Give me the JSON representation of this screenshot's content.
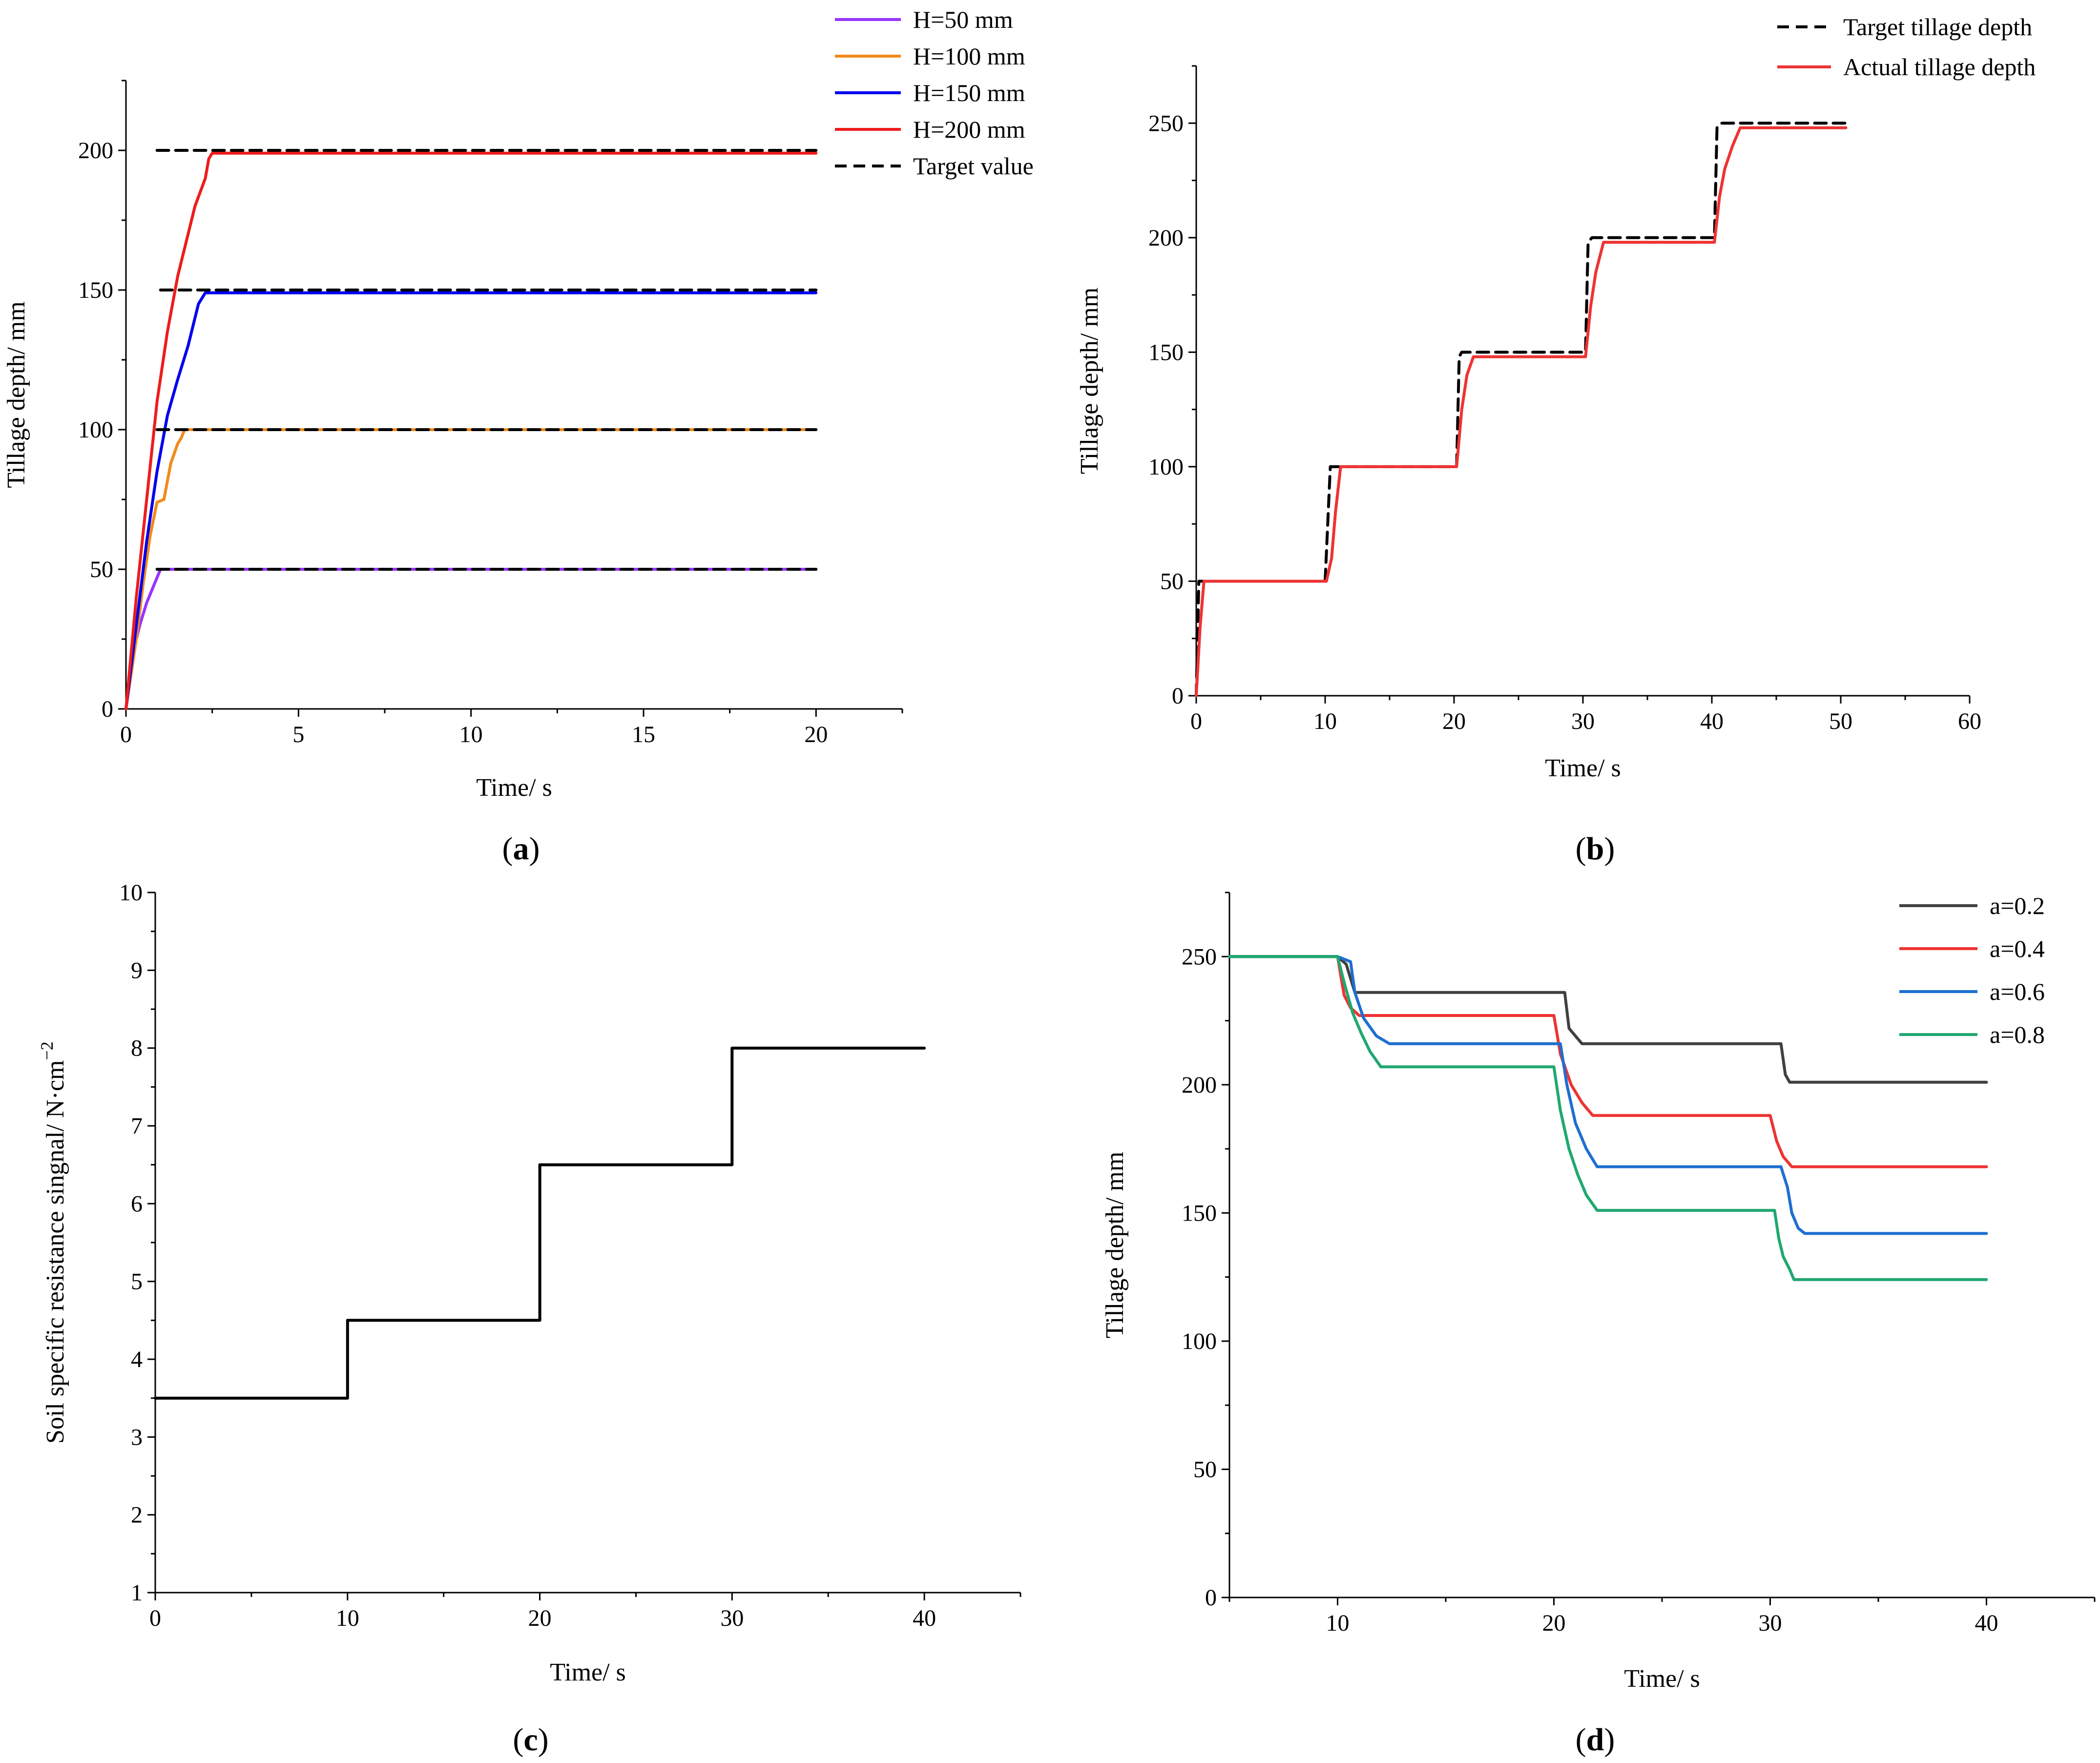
{
  "chart_data": [
    {
      "id": "a",
      "type": "line",
      "panel_label": "a",
      "xlabel": "Time/ s",
      "ylabel": "Tillage depth/ mm",
      "xlim": [
        0,
        22.5
      ],
      "ylim": [
        0,
        225
      ],
      "xticks": [
        0,
        5,
        10,
        15,
        20
      ],
      "yticks": [
        0,
        50,
        100,
        150,
        200
      ],
      "legend_position": "top-right",
      "series": [
        {
          "name": "H=50 mm",
          "color": "#9933FF",
          "dash": "",
          "x": [
            0,
            0.2,
            0.4,
            0.6,
            0.8,
            1.0,
            20
          ],
          "y": [
            0,
            20,
            30,
            38,
            44,
            50,
            50
          ]
        },
        {
          "name": "H=100 mm",
          "color": "#F28A1A",
          "dash": "",
          "x": [
            0,
            0.3,
            0.5,
            0.7,
            0.9,
            1.1,
            1.3,
            1.5,
            1.6,
            1.7,
            20
          ],
          "y": [
            0,
            25,
            45,
            62,
            74,
            75,
            88,
            95,
            97,
            100,
            100
          ]
        },
        {
          "name": "H=150 mm",
          "color": "#0000EE",
          "dash": "",
          "x": [
            0,
            0.3,
            0.6,
            0.9,
            1.2,
            1.5,
            1.8,
            2.1,
            2.3,
            20
          ],
          "y": [
            0,
            30,
            60,
            85,
            105,
            118,
            130,
            145,
            149,
            149
          ]
        },
        {
          "name": "H=200 mm",
          "color": "#EE1C1C",
          "dash": "",
          "x": [
            0,
            0.3,
            0.6,
            0.9,
            1.2,
            1.5,
            1.8,
            2.0,
            2.3,
            2.4,
            2.5,
            20
          ],
          "y": [
            0,
            40,
            75,
            110,
            135,
            155,
            170,
            180,
            190,
            197,
            199,
            199
          ]
        },
        {
          "name": "Target value",
          "color": "#000000",
          "dash": "24,14",
          "segments": [
            {
              "x": [
                0.9,
                20
              ],
              "y": [
                50,
                50
              ]
            },
            {
              "x": [
                0.9,
                20
              ],
              "y": [
                100,
                100
              ]
            },
            {
              "x": [
                1.0,
                20
              ],
              "y": [
                150,
                150
              ]
            },
            {
              "x": [
                0.9,
                20
              ],
              "y": [
                200,
                200
              ]
            }
          ]
        }
      ]
    },
    {
      "id": "b",
      "type": "line",
      "panel_label": "b",
      "xlabel": "Time/ s",
      "ylabel": "Tillage depth/ mm",
      "xlim": [
        0,
        60
      ],
      "ylim": [
        0,
        275
      ],
      "xticks": [
        0,
        10,
        20,
        30,
        40,
        50,
        60
      ],
      "yticks": [
        0,
        50,
        100,
        150,
        200,
        250
      ],
      "legend_position": "top-right",
      "series": [
        {
          "name": "Target tillage depth",
          "color": "#000000",
          "dash": "24,14",
          "x": [
            0,
            0.2,
            10,
            10.4,
            20.2,
            20.4,
            20.6,
            30.2,
            30.4,
            30.7,
            40.2,
            40.4,
            40.7,
            50.4
          ],
          "y": [
            0,
            50,
            50,
            100,
            100,
            148,
            150,
            150,
            198,
            200,
            200,
            248,
            250,
            250
          ]
        },
        {
          "name": "Actual tillage depth",
          "color": "#EE3333",
          "dash": "",
          "x": [
            0,
            0.3,
            0.6,
            10.1,
            10.5,
            10.8,
            11.2,
            20.2,
            20.6,
            21.0,
            21.5,
            30.2,
            30.6,
            31.0,
            31.6,
            40.2,
            40.6,
            41.0,
            41.6,
            42.2,
            50.4
          ],
          "y": [
            0,
            30,
            50,
            50,
            60,
            80,
            100,
            100,
            125,
            140,
            148,
            148,
            170,
            185,
            198,
            198,
            218,
            230,
            240,
            248,
            248
          ]
        }
      ]
    },
    {
      "id": "c",
      "type": "line",
      "panel_label": "c",
      "xlabel": "Time/ s",
      "ylabel": "Soil specific resistance singnal/ N·cm",
      "ylabel_sup": "−2",
      "xlim": [
        0,
        45
      ],
      "ylim": [
        1,
        10
      ],
      "xticks": [
        0,
        10,
        20,
        30,
        40
      ],
      "yticks": [
        1,
        2,
        3,
        4,
        5,
        6,
        7,
        8,
        9,
        10
      ],
      "series": [
        {
          "name": "Soil specific resistance signal",
          "color": "#000000",
          "dash": "",
          "x": [
            0,
            10,
            10,
            20,
            20,
            30,
            30,
            40
          ],
          "y": [
            3.5,
            3.5,
            4.5,
            4.5,
            6.5,
            6.5,
            8,
            8
          ]
        }
      ]
    },
    {
      "id": "d",
      "type": "line",
      "panel_label": "d",
      "xlabel": "Time/ s",
      "ylabel": "Tillage depth/ mm",
      "xlim": [
        5,
        45
      ],
      "ylim": [
        0,
        275
      ],
      "xticks": [
        10,
        20,
        30,
        40
      ],
      "yticks": [
        0,
        50,
        100,
        150,
        200,
        250
      ],
      "legend_position": "top-right",
      "series": [
        {
          "name": "a=0.2",
          "color": "#404040",
          "dash": "",
          "x": [
            5,
            10.0,
            10.4,
            10.8,
            20.5,
            20.7,
            21.0,
            21.3,
            30.5,
            30.7,
            30.9,
            40
          ],
          "y": [
            250,
            250,
            247,
            236,
            236,
            222,
            219,
            216,
            216,
            204,
            201,
            201
          ]
        },
        {
          "name": "a=0.4",
          "color": "#EE3333",
          "dash": "",
          "x": [
            5,
            10.0,
            10.3,
            10.6,
            11.0,
            20.0,
            20.3,
            20.8,
            21.3,
            21.8,
            30.0,
            30.3,
            30.6,
            31.0,
            40
          ],
          "y": [
            250,
            250,
            235,
            230,
            227,
            227,
            212,
            200,
            193,
            188,
            188,
            178,
            172,
            168,
            168
          ]
        },
        {
          "name": "a=0.6",
          "color": "#1E6FD0",
          "dash": "",
          "x": [
            5,
            10.0,
            10.6,
            10.8,
            11.2,
            11.8,
            12.4,
            20.3,
            20.6,
            21.0,
            21.5,
            22.0,
            30.5,
            30.8,
            31.0,
            31.3,
            31.6,
            40
          ],
          "y": [
            250,
            250,
            248,
            236,
            226,
            219,
            216,
            216,
            200,
            185,
            175,
            168,
            168,
            160,
            150,
            144,
            142,
            142
          ]
        },
        {
          "name": "a=0.8",
          "color": "#20A870",
          "dash": "",
          "x": [
            5,
            10.0,
            10.3,
            10.7,
            11.1,
            11.5,
            12.0,
            20.0,
            20.3,
            20.7,
            21.1,
            21.5,
            22.0,
            30.2,
            30.4,
            30.6,
            30.9,
            31.1,
            40
          ],
          "y": [
            250,
            250,
            240,
            228,
            220,
            213,
            207,
            207,
            190,
            175,
            165,
            157,
            151,
            151,
            140,
            133,
            128,
            124,
            124
          ]
        }
      ]
    }
  ]
}
